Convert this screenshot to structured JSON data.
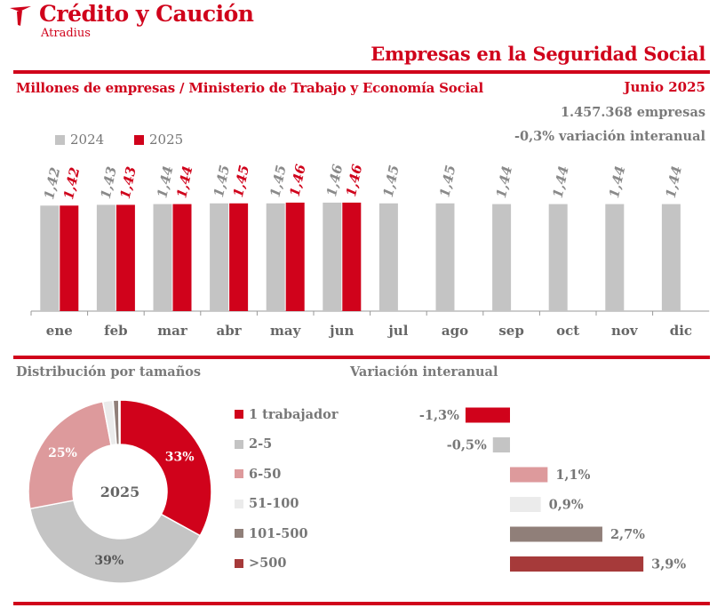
{
  "header": {
    "brand": "Crédito y Caución",
    "brand_sub": "Atradius",
    "page_title": "Empresas en la Seguridad Social",
    "subtitle": "Millones de empresas / Ministerio de Trabajo y Economía Social",
    "date": "Junio 2025",
    "total": "1.457.368 empresas",
    "variation": "-0,3% variación interanual"
  },
  "colors": {
    "accent": "#d0021b",
    "grey": "#c4c4c4",
    "text_grey": "#7a7a7a"
  },
  "legend": {
    "y2024": "2024",
    "y2025": "2025"
  },
  "sections": {
    "distribution_title": "Distribución por tamaños",
    "variation_title": "Variación interanual"
  },
  "chart_data": [
    {
      "type": "bar",
      "categories": [
        "ene",
        "feb",
        "mar",
        "abr",
        "may",
        "jun",
        "jul",
        "ago",
        "sep",
        "oct",
        "nov",
        "dic"
      ],
      "series": [
        {
          "name": "2024",
          "color": "#c4c4c4",
          "values": [
            1.42,
            1.43,
            1.44,
            1.45,
            1.45,
            1.46,
            1.45,
            1.45,
            1.44,
            1.44,
            1.44,
            1.44
          ],
          "labels": [
            "1,42",
            "1,43",
            "1,44",
            "1,45",
            "1,45",
            "1,46",
            "1,45",
            "1,45",
            "1,44",
            "1,44",
            "1,44",
            "1,44"
          ]
        },
        {
          "name": "2025",
          "color": "#d0021b",
          "values": [
            1.42,
            1.43,
            1.44,
            1.45,
            1.46,
            1.46,
            null,
            null,
            null,
            null,
            null,
            null
          ],
          "labels": [
            "1,42",
            "1,43",
            "1,44",
            "1,45",
            "1,46",
            "1,46",
            null,
            null,
            null,
            null,
            null,
            null
          ]
        }
      ],
      "ylim": [
        0,
        1.6
      ]
    },
    {
      "type": "pie",
      "center_label": "2025",
      "categories": [
        "1 trabajador",
        "2-5",
        "6-50",
        "51-100",
        "101-500",
        ">500"
      ],
      "values": [
        33,
        39,
        25,
        1.8,
        1,
        0.2
      ],
      "labels": [
        "33%",
        "39%",
        "25%",
        null,
        null,
        null
      ],
      "colors": [
        "#d0021b",
        "#c4c4c4",
        "#dd9a9c",
        "#ebebeb",
        "#907f79",
        "#a63a3a"
      ]
    },
    {
      "type": "bar",
      "orientation": "horizontal",
      "categories": [
        "1 trabajador",
        "2-5",
        "6-50",
        "51-100",
        "101-500",
        ">500"
      ],
      "values": [
        -1.3,
        -0.5,
        1.1,
        0.9,
        2.7,
        3.9
      ],
      "labels": [
        "-1,3%",
        "-0,5%",
        "1,1%",
        "0,9%",
        "2,7%",
        "3,9%"
      ],
      "colors": [
        "#d0021b",
        "#c4c4c4",
        "#dd9a9c",
        "#ebebeb",
        "#907f79",
        "#a63a3a"
      ]
    }
  ]
}
